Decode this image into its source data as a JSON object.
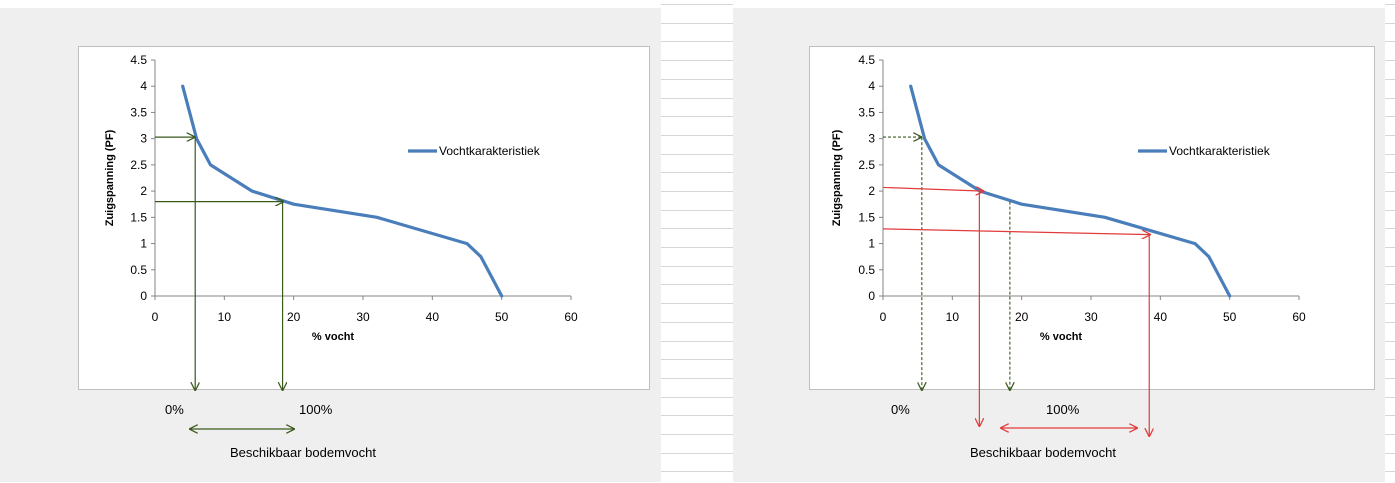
{
  "chart_data": [
    {
      "type": "line",
      "title": "",
      "xlabel": "% vocht",
      "ylabel": "Zuigspanning  (PF)",
      "xlim": [
        0,
        60
      ],
      "ylim": [
        0,
        4.5
      ],
      "xticks": [
        "0",
        "10",
        "20",
        "30",
        "40",
        "50",
        "60"
      ],
      "yticks": [
        "0",
        "0.5",
        "1",
        "1.5",
        "2",
        "2.5",
        "3",
        "3.5",
        "4",
        "4.5"
      ],
      "grid": false,
      "legend": "right",
      "series": [
        {
          "name": "Vochtkarakteristiek",
          "color": "#4a7ebb",
          "x": [
            4,
            6,
            8,
            14,
            20,
            32,
            45,
            47,
            48,
            50
          ],
          "y": [
            4,
            3,
            2.5,
            2,
            1.75,
            1.5,
            1,
            0.75,
            0.5,
            0
          ]
        }
      ],
      "annotations": {
        "zero_label": "0%",
        "hundred_label": "100%",
        "caption": "Beschikbaar bodemvocht",
        "arrow_color": "#3a5a1c"
      }
    },
    {
      "type": "line",
      "title": "",
      "xlabel": "% vocht",
      "ylabel": "Zuigspanning  (PF)",
      "xlim": [
        0,
        60
      ],
      "ylim": [
        0,
        4.5
      ],
      "xticks": [
        "0",
        "10",
        "20",
        "30",
        "40",
        "50",
        "60"
      ],
      "yticks": [
        "0",
        "0.5",
        "1",
        "1.5",
        "2",
        "2.5",
        "3",
        "3.5",
        "4",
        "4.5"
      ],
      "grid": false,
      "legend": "right",
      "series": [
        {
          "name": "Vochtkarakteristiek",
          "color": "#4a7ebb",
          "x": [
            4,
            6,
            8,
            14,
            20,
            32,
            45,
            47,
            48,
            50
          ],
          "y": [
            4,
            3,
            2.5,
            2,
            1.75,
            1.5,
            1,
            0.75,
            0.5,
            0
          ]
        }
      ],
      "annotations": {
        "zero_label": "0%",
        "hundred_label": "100%",
        "caption": "Beschikbaar bodemvocht",
        "arrow_color": "#3a5a1c",
        "red_color": "#e33a3a"
      }
    }
  ]
}
